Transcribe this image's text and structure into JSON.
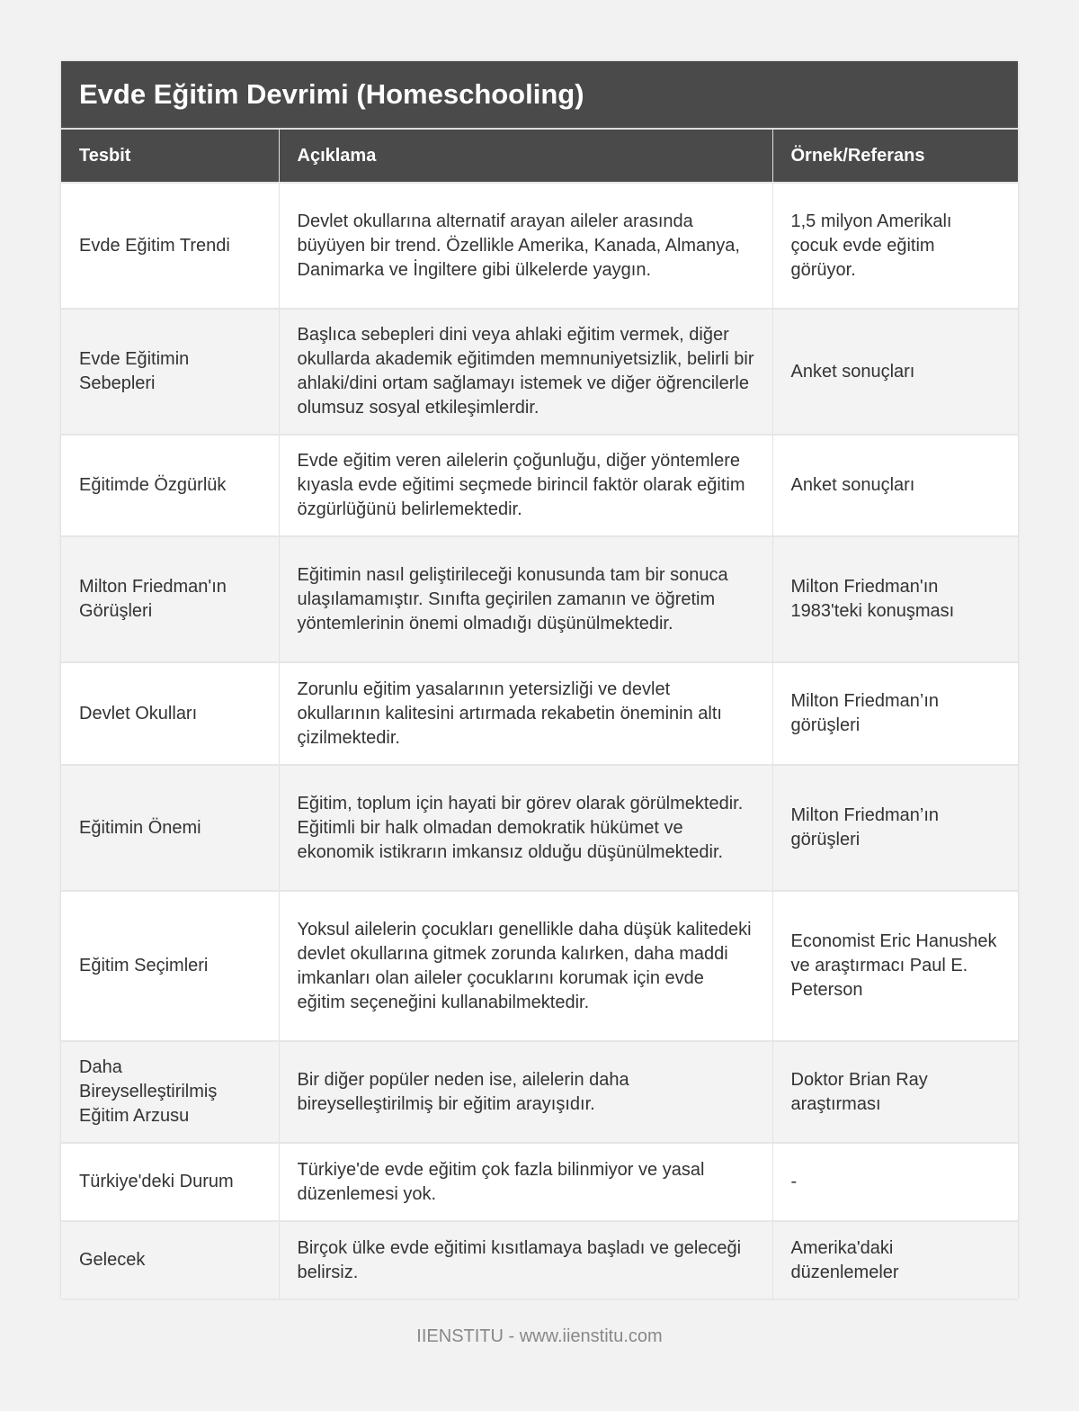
{
  "title": "Evde Eğitim Devrimi (Homeschooling)",
  "columns": [
    "Tesbit",
    "Açıklama",
    "Örnek/Referans"
  ],
  "rows": [
    [
      "Evde Eğitim Trendi",
      "Devlet okullarına alternatif arayan aileler arasında büyüyen bir trend. Özellikle Amerika, Kanada, Almanya, Danimarka ve İngiltere gibi ülkelerde yaygın.",
      "1,5 milyon Amerikalı çocuk evde eğitim görüyor."
    ],
    [
      "Evde Eğitimin Sebepleri",
      "Başlıca sebepleri dini veya ahlaki eğitim vermek, diğer okullarda akademik eğitimden memnuniyetsizlik, belirli bir ahlaki/dini ortam sağlamayı istemek ve diğer öğrencilerle olumsuz sosyal etkileşimlerdir.",
      "Anket sonuçları"
    ],
    [
      "Eğitimde Özgürlük",
      "Evde eğitim veren ailelerin çoğunluğu, diğer yöntemlere kıyasla evde eğitimi seçmede birincil faktör olarak eğitim özgürlüğünü belirlemektedir.",
      "Anket sonuçları"
    ],
    [
      "Milton Friedman'ın Görüşleri",
      "Eğitimin nasıl geliştirileceği konusunda tam bir sonuca ulaşılamamıştır. Sınıfta geçirilen zamanın ve öğretim yöntemlerinin önemi olmadığı düşünülmektedir.",
      "Milton Friedman'ın 1983'teki konuşması"
    ],
    [
      "Devlet Okulları",
      "Zorunlu eğitim yasalarının yetersizliği ve devlet okullarının kalitesini artırmada rekabetin öneminin altı çizilmektedir.",
      "Milton Friedman’ın görüşleri"
    ],
    [
      "Eğitimin Önemi",
      "Eğitim, toplum için hayati bir görev olarak görülmektedir. Eğitimli bir halk olmadan demokratik hükümet ve ekonomik istikrarın imkansız olduğu düşünülmektedir.",
      "Milton Friedman’ın görüşleri"
    ],
    [
      "Eğitim Seçimleri",
      "Yoksul ailelerin çocukları genellikle daha düşük kalitedeki devlet okullarına gitmek zorunda kalırken, daha maddi imkanları olan aileler çocuklarını korumak için evde eğitim seçeneğini kullanabilmektedir.",
      "Economist Eric Hanushek ve araştırmacı Paul E. Peterson"
    ],
    [
      "Daha Bireyselleştirilmiş Eğitim Arzusu",
      "Bir diğer popüler neden ise, ailelerin daha bireyselleştirilmiş bir eğitim arayışıdır.",
      "Doktor Brian Ray araştırması"
    ],
    [
      "Türkiye'deki Durum",
      "Türkiye'de evde eğitim çok fazla bilinmiyor ve yasal düzenlemesi yok.",
      "-"
    ],
    [
      "Gelecek",
      "Birçok ülke evde eğitimi kısıtlamaya başladı ve geleceği belirsiz.",
      "Amerika'daki düzenlemeler"
    ]
  ],
  "footer": "IIENSTITU - www.iienstitu.com"
}
